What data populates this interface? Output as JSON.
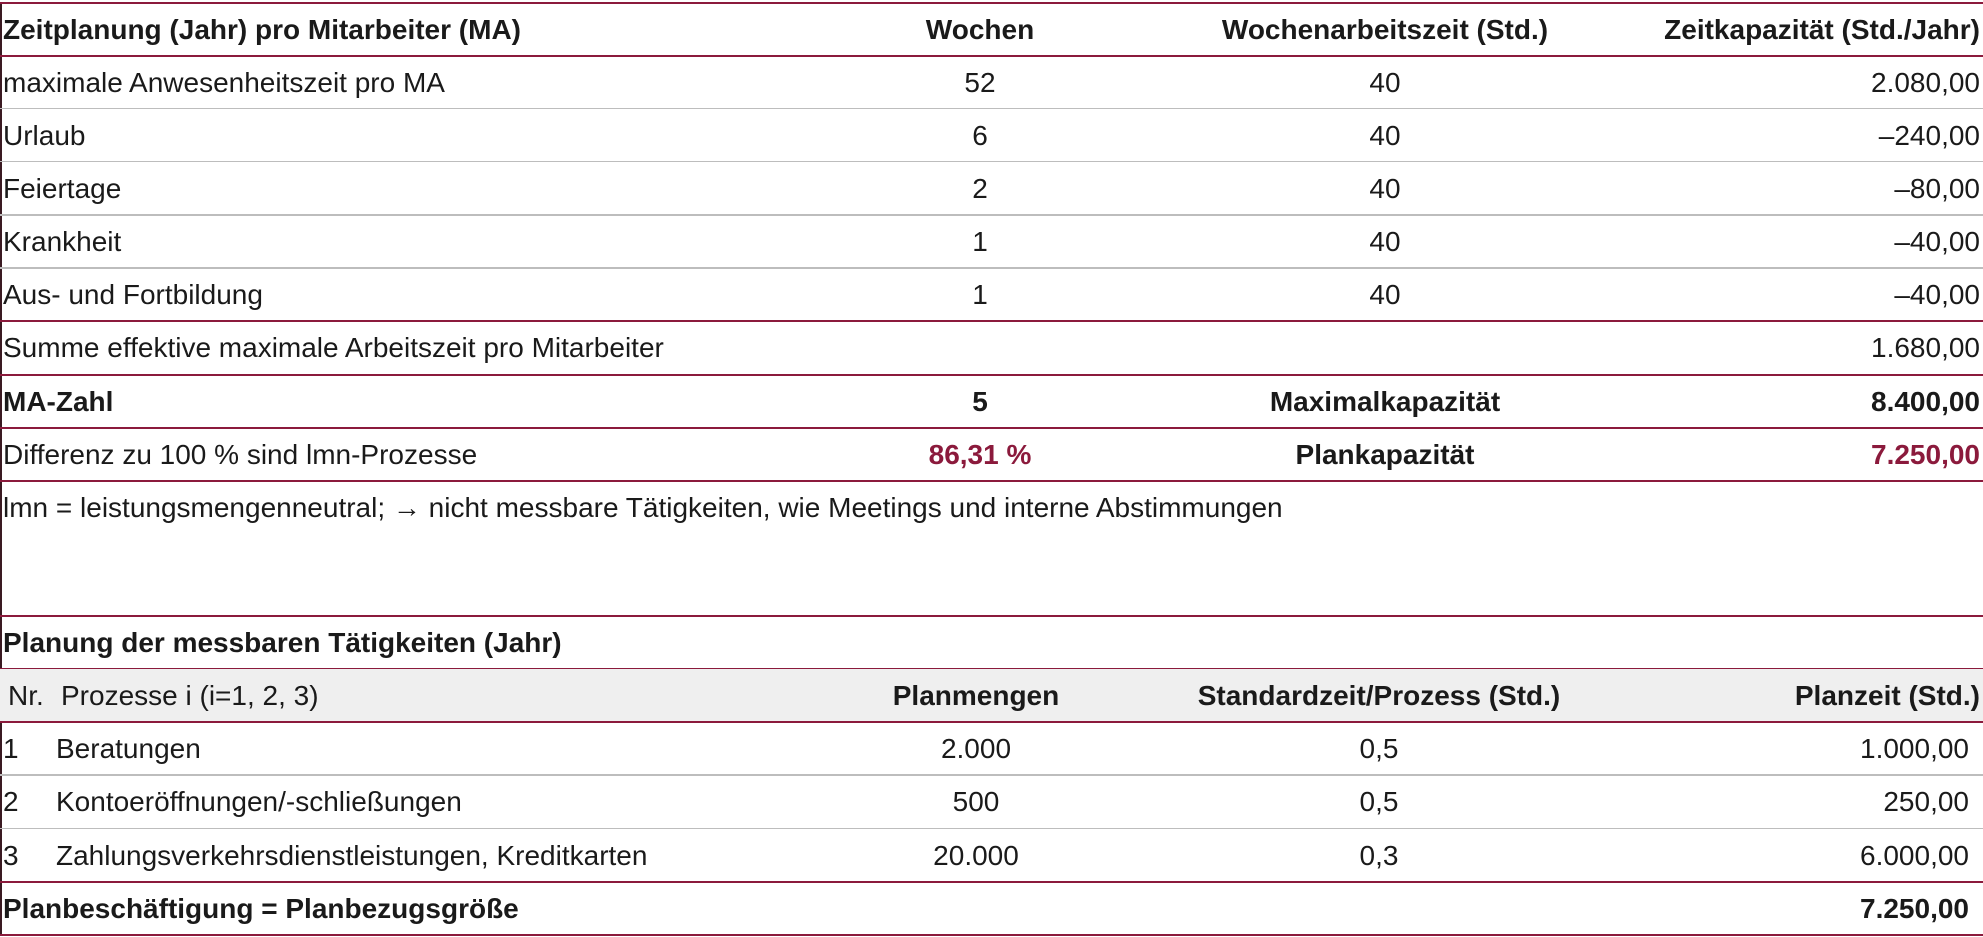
{
  "table1": {
    "header": [
      "Zeitplanung (Jahr) pro Mitarbeiter (MA)",
      "Wochen",
      "Wochenarbeitszeit (Std.)",
      "Zeitkapazität (Std./Jahr)"
    ],
    "rows": [
      [
        "maximale Anwesenheitszeit pro MA",
        "52",
        "40",
        "2.080,00"
      ],
      [
        "Urlaub",
        "6",
        "40",
        "–240,00"
      ],
      [
        "Feiertage",
        "2",
        "40",
        "–80,00"
      ],
      [
        "Krankheit",
        "1",
        "40",
        "–40,00"
      ],
      [
        "Aus- und Fortbildung",
        "1",
        "40",
        "–40,00"
      ]
    ],
    "sum": {
      "label": "Summe effektive maximale Arbeitszeit pro Mitarbeiter",
      "value": "1.680,00"
    },
    "ma": [
      "MA-Zahl",
      "5",
      "Maximalkapazität",
      "8.400,00"
    ],
    "diff": [
      "Differenz zu 100 % sind lmn-Prozesse",
      "86,31 %",
      "Plankapazität",
      "7.250,00"
    ]
  },
  "note": "lmn = leistungsmengenneutral; → nicht messbare Tätigkeiten, wie Meetings und interne Abstimmungen",
  "table2": {
    "title": "Planung der messbaren Tätigkeiten (Jahr)",
    "header": [
      "Nr.",
      "Prozesse i (i=1, 2, 3)",
      "Planmengen",
      "Standardzeit/Prozess (Std.)",
      "Planzeit (Std.)"
    ],
    "rows": [
      [
        "1",
        "Beratungen",
        "2.000",
        "0,5",
        "1.000,00"
      ],
      [
        "2",
        "Kontoeröffnungen/-schließungen",
        "500",
        "0,5",
        "250,00"
      ],
      [
        "3",
        "Zahlungsverkehrsdienstleistungen, Kreditkarten",
        "20.000",
        "0,3",
        "6.000,00"
      ]
    ],
    "total": {
      "label": "Planbeschäftigung = Planbezugsgröße",
      "value": "7.250,00"
    }
  }
}
